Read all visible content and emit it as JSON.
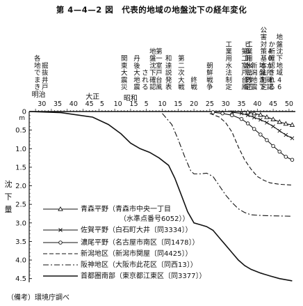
{
  "title": "第 4—4—2 図　代表的地域の地盤沈下の経年変化",
  "note": "（備考）環境庁調べ",
  "chart_data": {
    "type": "line",
    "era_labels": [
      {
        "x": 1896,
        "label": "明治"
      },
      {
        "x": 1913,
        "label": "大正"
      },
      {
        "x": 1925,
        "label": "昭和"
      }
    ],
    "x_ticks": [
      {
        "x": 1897,
        "label": "30"
      },
      {
        "x": 1902,
        "label": "35"
      },
      {
        "x": 1907,
        "label": "40"
      },
      {
        "x": 1912,
        "label": "45"
      },
      {
        "x": 1916,
        "label": "5"
      },
      {
        "x": 1921,
        "label": "10"
      },
      {
        "x": 1926,
        "label": "15"
      },
      {
        "x": 1930,
        "label": "5"
      },
      {
        "x": 1935,
        "label": "10"
      },
      {
        "x": 1940,
        "label": "15"
      },
      {
        "x": 1945,
        "label": "20"
      },
      {
        "x": 1950,
        "label": "25"
      },
      {
        "x": 1955,
        "label": "30"
      },
      {
        "x": 1960,
        "label": "35"
      },
      {
        "x": 1965,
        "label": "40"
      },
      {
        "x": 1970,
        "label": "45"
      },
      {
        "x": 1975,
        "label": "50"
      }
    ],
    "xlim": [
      1893,
      1977
    ],
    "ylim": [
      0,
      4.6
    ],
    "y_ticks": [
      {
        "v": 0,
        "label": "0"
      },
      {
        "v": 0.5,
        "label": "0.5"
      },
      {
        "v": 1.0,
        "label": "1.0"
      },
      {
        "v": 1.5,
        "label": "1.5"
      },
      {
        "v": 2.0,
        "label": "2.0"
      },
      {
        "v": 2.5,
        "label": "2.5"
      },
      {
        "v": 3.0,
        "label": "3.0"
      },
      {
        "v": 3.5,
        "label": "3.5"
      },
      {
        "v": 4.0,
        "label": "4.0"
      },
      {
        "v": 4.5,
        "label": "4.5"
      }
    ],
    "y_unit": "m",
    "ylabel": "沈下量",
    "events": [
      {
        "x": 1898,
        "lines": [
          "各地でまき",
          "掘抜井戸"
        ]
      },
      {
        "x": 1923,
        "lines": [
          "関東大震災"
        ]
      },
      {
        "x": 1927,
        "lines": [
          "丹後大地震"
        ]
      },
      {
        "x": 1932,
        "lines": [
          "される",
          "地盤沈下確認"
        ]
      },
      {
        "x": 1934,
        "lines": [
          "第一室戸台風"
        ]
      },
      {
        "x": 1937,
        "lines": [
          "和達説発表"
        ]
      },
      {
        "x": 1941,
        "lines": [
          "第二次大戦"
        ]
      },
      {
        "x": 1945,
        "lines": [
          "終戦"
        ]
      },
      {
        "x": 1950,
        "lines": [
          "朝鮮戦争"
        ]
      },
      {
        "x": 1956,
        "lines": [
          "工業用水法制定"
        ]
      },
      {
        "x": 1961,
        "lines": [
          "第二室戸台風"
        ]
      },
      {
        "x": 1962,
        "lines": [
          "ビル用水法制定"
        ]
      },
      {
        "x": 1962.5,
        "lines": [
          "工業用水法改正"
        ]
      },
      {
        "x": 1964,
        "lines": [
          "新潟地震"
        ]
      },
      {
        "x": 1967,
        "lines": [
          "公害対策基本法制定"
        ]
      },
      {
        "x": 1969,
        "lines": [
          "地盤沈下",
          "40か所確認"
        ]
      },
      {
        "x": 1972,
        "lines": [
          "か所確認される",
          "地盤沈下地域46"
        ]
      }
    ],
    "series": [
      {
        "name": "青森平野",
        "desc": "（青森市中央一丁目（水準点番号6052））",
        "style": "solid-triangle",
        "points": [
          [
            1962,
            0.02
          ],
          [
            1964,
            0.05
          ],
          [
            1966,
            0.09
          ],
          [
            1968,
            0.15
          ],
          [
            1970,
            0.21
          ],
          [
            1972,
            0.28
          ],
          [
            1974,
            0.33
          ],
          [
            1976,
            0.36
          ]
        ]
      },
      {
        "name": "佐賀平野",
        "desc": "（白石町大井〔同3334〕）",
        "style": "solid-cross",
        "points": [
          [
            1957,
            0.02
          ],
          [
            1960,
            0.05
          ],
          [
            1962,
            0.1
          ],
          [
            1964,
            0.16
          ],
          [
            1966,
            0.22
          ],
          [
            1968,
            0.3
          ],
          [
            1970,
            0.4
          ],
          [
            1972,
            0.52
          ],
          [
            1974,
            0.63
          ],
          [
            1976,
            0.72
          ]
        ]
      },
      {
        "name": "濃尾平野",
        "desc": "（名古屋市南区〔同1478〕）",
        "style": "solid-circle",
        "points": [
          [
            1951,
            0.02
          ],
          [
            1954,
            0.05
          ],
          [
            1957,
            0.1
          ],
          [
            1960,
            0.2
          ],
          [
            1962,
            0.32
          ],
          [
            1964,
            0.47
          ],
          [
            1966,
            0.62
          ],
          [
            1968,
            0.77
          ],
          [
            1970,
            0.93
          ],
          [
            1972,
            1.08
          ],
          [
            1974,
            1.22
          ],
          [
            1976,
            1.3
          ]
        ]
      },
      {
        "name": "新潟地区",
        "desc": "（新潟市関屋〔同4425〕）",
        "style": "dashed",
        "points": [
          [
            1950,
            0.05
          ],
          [
            1953,
            0.15
          ],
          [
            1955,
            0.3
          ],
          [
            1957,
            0.55
          ],
          [
            1959,
            0.95
          ],
          [
            1961,
            1.3
          ],
          [
            1963,
            1.55
          ],
          [
            1965,
            1.75
          ],
          [
            1967,
            1.85
          ],
          [
            1969,
            1.92
          ],
          [
            1972,
            1.96
          ],
          [
            1976,
            1.98
          ]
        ]
      },
      {
        "name": "阪神地区",
        "desc": "（大阪市此花区〔同西13〕）",
        "style": "dashdot",
        "points": [
          [
            1935,
            0.05
          ],
          [
            1938,
            0.35
          ],
          [
            1940,
            0.75
          ],
          [
            1942,
            1.2
          ],
          [
            1944,
            1.6
          ],
          [
            1945,
            1.68
          ],
          [
            1947,
            1.68
          ],
          [
            1949,
            1.66
          ],
          [
            1951,
            1.75
          ],
          [
            1953,
            2.0
          ],
          [
            1955,
            2.25
          ],
          [
            1957,
            2.45
          ],
          [
            1959,
            2.62
          ],
          [
            1961,
            2.72
          ],
          [
            1963,
            2.78
          ],
          [
            1966,
            2.8
          ],
          [
            1970,
            2.81
          ],
          [
            1976,
            2.82
          ]
        ]
      },
      {
        "name": "首都圏南部",
        "desc": "（東京都江東区〔同3377〕）",
        "style": "solid",
        "points": [
          [
            1893,
            0
          ],
          [
            1903,
            0.03
          ],
          [
            1913,
            0.15
          ],
          [
            1918,
            0.35
          ],
          [
            1922,
            0.6
          ],
          [
            1925,
            0.85
          ],
          [
            1928,
            1.0
          ],
          [
            1931,
            1.1
          ],
          [
            1934,
            1.25
          ],
          [
            1937,
            1.45
          ],
          [
            1939,
            1.8
          ],
          [
            1941,
            2.25
          ],
          [
            1943,
            2.7
          ],
          [
            1945,
            3.0
          ],
          [
            1947,
            3.05
          ],
          [
            1949,
            3.1
          ],
          [
            1951,
            3.2
          ],
          [
            1953,
            3.4
          ],
          [
            1955,
            3.6
          ],
          [
            1957,
            3.8
          ],
          [
            1959,
            4.0
          ],
          [
            1961,
            4.15
          ],
          [
            1963,
            4.25
          ],
          [
            1966,
            4.35
          ],
          [
            1969,
            4.43
          ],
          [
            1972,
            4.5
          ],
          [
            1976,
            4.56
          ]
        ]
      }
    ]
  }
}
